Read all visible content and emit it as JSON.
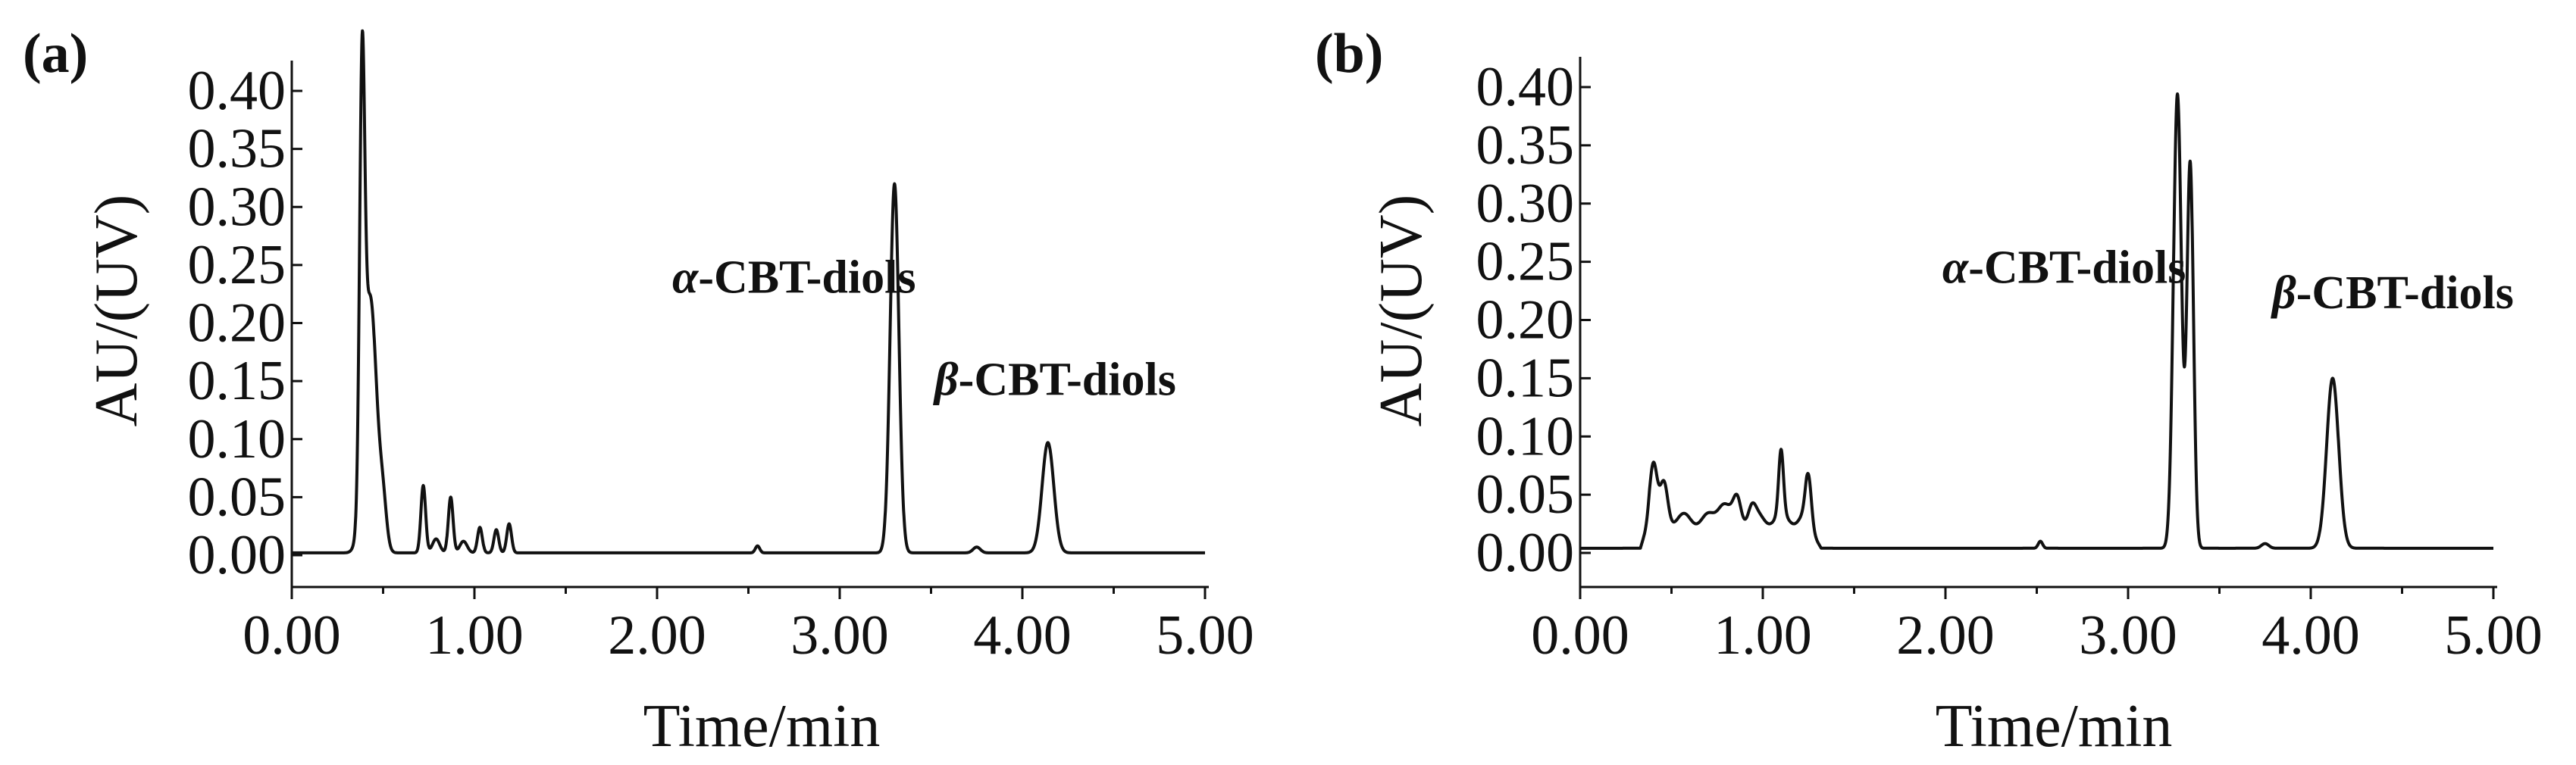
{
  "chart_data": [
    {
      "type": "line",
      "panel_label": "(a)",
      "title": "",
      "xlabel": "Time/min",
      "ylabel": "AU/(UV)",
      "xlim": [
        0,
        5
      ],
      "ylim": [
        -0.02,
        0.43
      ],
      "xticks": [
        0,
        1,
        2,
        3,
        4,
        5
      ],
      "xtick_labels": [
        "0.00",
        "1.00",
        "2.00",
        "3.00",
        "4.00",
        "5.00"
      ],
      "yticks": [
        0,
        0.05,
        0.1,
        0.15,
        0.2,
        0.25,
        0.3,
        0.35,
        0.4
      ],
      "ytick_labels": [
        "0.00",
        "0.05",
        "0.10",
        "0.15",
        "0.20",
        "0.25",
        "0.30",
        "0.35",
        "0.40"
      ],
      "grid": false,
      "legend": "none",
      "baseline": 0.002,
      "peaks": [
        {
          "t": 0.385,
          "h": 0.35,
          "w": 0.014
        },
        {
          "t": 0.43,
          "h": 0.22,
          "w": 0.035
        },
        {
          "t": 0.5,
          "h": 0.035,
          "w": 0.02
        },
        {
          "t": 0.72,
          "h": 0.058,
          "w": 0.013
        },
        {
          "t": 0.79,
          "h": 0.012,
          "w": 0.02
        },
        {
          "t": 0.87,
          "h": 0.048,
          "w": 0.013
        },
        {
          "t": 0.94,
          "h": 0.01,
          "w": 0.02
        },
        {
          "t": 1.03,
          "h": 0.022,
          "w": 0.013
        },
        {
          "t": 1.12,
          "h": 0.02,
          "w": 0.013
        },
        {
          "t": 1.19,
          "h": 0.025,
          "w": 0.013
        },
        {
          "t": 2.55,
          "h": 0.006,
          "w": 0.012
        },
        {
          "t": 3.3,
          "h": 0.318,
          "w": 0.024
        },
        {
          "t": 3.75,
          "h": 0.005,
          "w": 0.02
        },
        {
          "t": 4.14,
          "h": 0.095,
          "w": 0.032
        }
      ],
      "annotations": [
        {
          "greek": "α",
          "text": "-CBT-diols",
          "t": 2.75,
          "y": 0.226
        },
        {
          "greek": "β",
          "text": "-CBT-diols",
          "t": 4.18,
          "y": 0.138
        }
      ]
    },
    {
      "type": "line",
      "panel_label": "(b)",
      "title": "",
      "xlabel": "Time/min",
      "ylabel": "AU/(UV)",
      "xlim": [
        0,
        5
      ],
      "ylim": [
        -0.02,
        0.43
      ],
      "xticks": [
        0,
        1,
        2,
        3,
        4,
        5
      ],
      "xtick_labels": [
        "0.00",
        "1.00",
        "2.00",
        "3.00",
        "4.00",
        "5.00"
      ],
      "yticks": [
        0,
        0.05,
        0.1,
        0.15,
        0.2,
        0.25,
        0.3,
        0.35,
        0.4
      ],
      "ytick_labels": [
        "0.00",
        "0.05",
        "0.10",
        "0.15",
        "0.20",
        "0.25",
        "0.30",
        "0.35",
        "0.40"
      ],
      "grid": false,
      "legend": "none",
      "baseline": 0.004,
      "hump": {
        "start": 0.33,
        "end": 1.32,
        "level": 0.03
      },
      "peaks": [
        {
          "t": 0.4,
          "h": 0.048,
          "w": 0.02
        },
        {
          "t": 0.46,
          "h": 0.03,
          "w": 0.02
        },
        {
          "t": 0.78,
          "h": 0.016,
          "w": 0.03
        },
        {
          "t": 0.86,
          "h": 0.018,
          "w": 0.02
        },
        {
          "t": 0.94,
          "h": 0.012,
          "w": 0.02
        },
        {
          "t": 1.1,
          "h": 0.055,
          "w": 0.013
        },
        {
          "t": 1.25,
          "h": 0.038,
          "w": 0.016
        },
        {
          "t": 2.52,
          "h": 0.006,
          "w": 0.012
        },
        {
          "t": 3.27,
          "h": 0.39,
          "w": 0.022
        },
        {
          "t": 3.34,
          "h": 0.33,
          "w": 0.018
        },
        {
          "t": 3.75,
          "h": 0.004,
          "w": 0.02
        },
        {
          "t": 4.12,
          "h": 0.146,
          "w": 0.033
        }
      ],
      "annotations": [
        {
          "greek": "α",
          "text": "-CBT-diols",
          "t": 2.65,
          "y": 0.232
        },
        {
          "greek": "β",
          "text": "-CBT-diols",
          "t": 4.45,
          "y": 0.21
        }
      ]
    }
  ]
}
